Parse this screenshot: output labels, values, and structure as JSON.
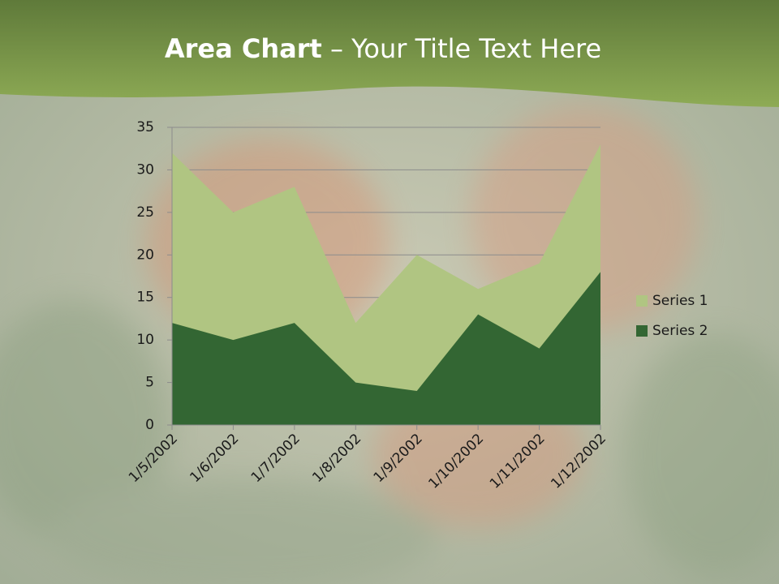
{
  "chart_data": {
    "type": "area",
    "title": {
      "bold": "Area Chart",
      "rest": " – Your Title Text Here"
    },
    "categories": [
      "1/5/2002",
      "1/6/2002",
      "1/7/2002",
      "1/8/2002",
      "1/9/2002",
      "1/10/2002",
      "1/11/2002",
      "1/12/2002"
    ],
    "series": [
      {
        "name": "Series 1",
        "color": "#b0c582",
        "values": [
          32,
          25,
          28,
          12,
          20,
          16,
          19,
          33
        ]
      },
      {
        "name": "Series 2",
        "color": "#336633",
        "values": [
          12,
          10,
          12,
          5,
          4,
          13,
          9,
          18
        ]
      }
    ],
    "ylim": [
      0,
      35
    ],
    "yticks": [
      0,
      5,
      10,
      15,
      20,
      25,
      30,
      35
    ],
    "grid": true,
    "legend": "right"
  }
}
